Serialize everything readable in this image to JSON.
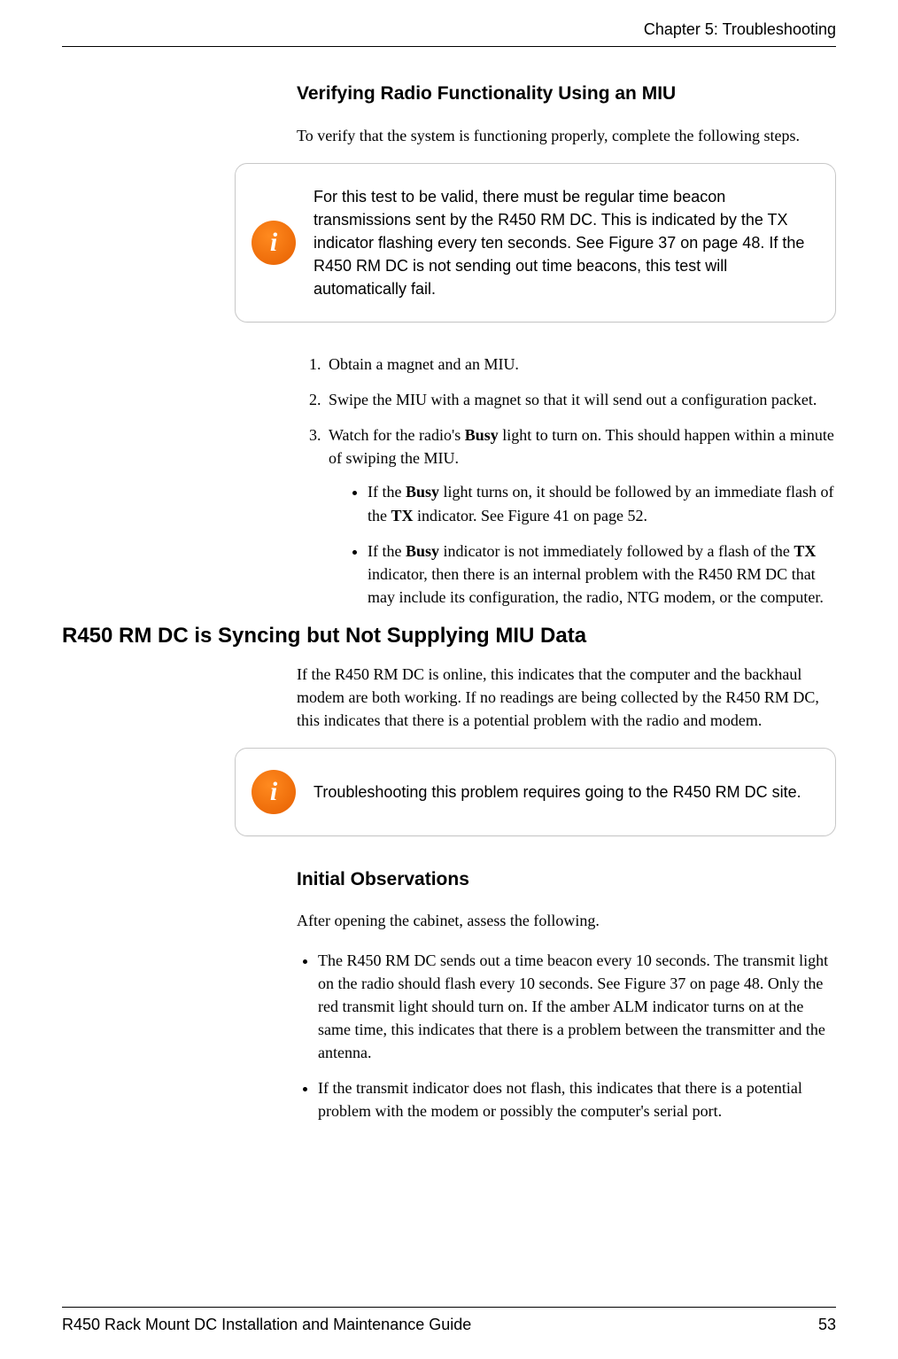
{
  "header": {
    "chapter_label": "Chapter 5: Troubleshooting"
  },
  "section1": {
    "heading": "Verifying Radio Functionality Using an MIU",
    "intro": "To verify that the system is functioning properly, complete the following steps.",
    "callout_icon_glyph": "i",
    "callout_text": "For this test to be valid, there must be regular time beacon transmissions sent by the R450 RM DC. This is indicated by the TX indicator flashing every ten seconds. See Figure 37 on page 48. If the R450 RM DC is not sending out time beacons, this test will automatically fail.",
    "step1": "Obtain a magnet and an MIU.",
    "step2": "Swipe the MIU with a magnet so that it will send out a configuration packet.",
    "step3_pre": "Watch for the radio's ",
    "step3_bold": "Busy",
    "step3_post": " light to turn on. This should happen within a minute of swiping the MIU.",
    "sub1_a": "If the ",
    "sub1_b": "Busy",
    "sub1_c": " light turns on, it should be followed by an immediate flash of the ",
    "sub1_d": "TX",
    "sub1_e": " indicator. See Figure 41 on page 52.",
    "sub2_a": "If the ",
    "sub2_b": "Busy",
    "sub2_c": " indicator is not immediately followed by a flash of the ",
    "sub2_d": "TX",
    "sub2_e": " indicator, then there is an internal problem with the R450 RM DC that may include its configuration, the radio, NTG modem, or the computer."
  },
  "section2": {
    "heading": "R450 RM DC is Syncing but Not Supplying MIU Data",
    "para": "If the R450 RM DC is online, this indicates that the computer and the backhaul modem are both working. If no readings are being collected by the R450 RM DC, this indicates that there is a potential problem with the radio and modem.",
    "callout_icon_glyph": "i",
    "callout_text": "Troubleshooting this problem requires going to the R450 RM DC site.",
    "subheading": "Initial Observations",
    "subintro": "After opening the cabinet, assess the following.",
    "obs1": "The R450 RM DC sends out a time beacon every 10 seconds. The transmit light on the radio should flash every 10 seconds. See Figure 37 on page 48. Only the red transmit light should turn on. If the amber ALM indicator turns on at the same time, this indicates that there is a problem between the transmitter and the antenna.",
    "obs2": "If the transmit indicator does not flash, this indicates that there is a potential problem with the modem or possibly the computer's serial port."
  },
  "footer": {
    "doc_title": "R450 Rack Mount DC Installation and Maintenance Guide",
    "page_number": "53"
  },
  "colors": {
    "icon_bg": "#f06a00",
    "border": "#c8c8c8"
  }
}
